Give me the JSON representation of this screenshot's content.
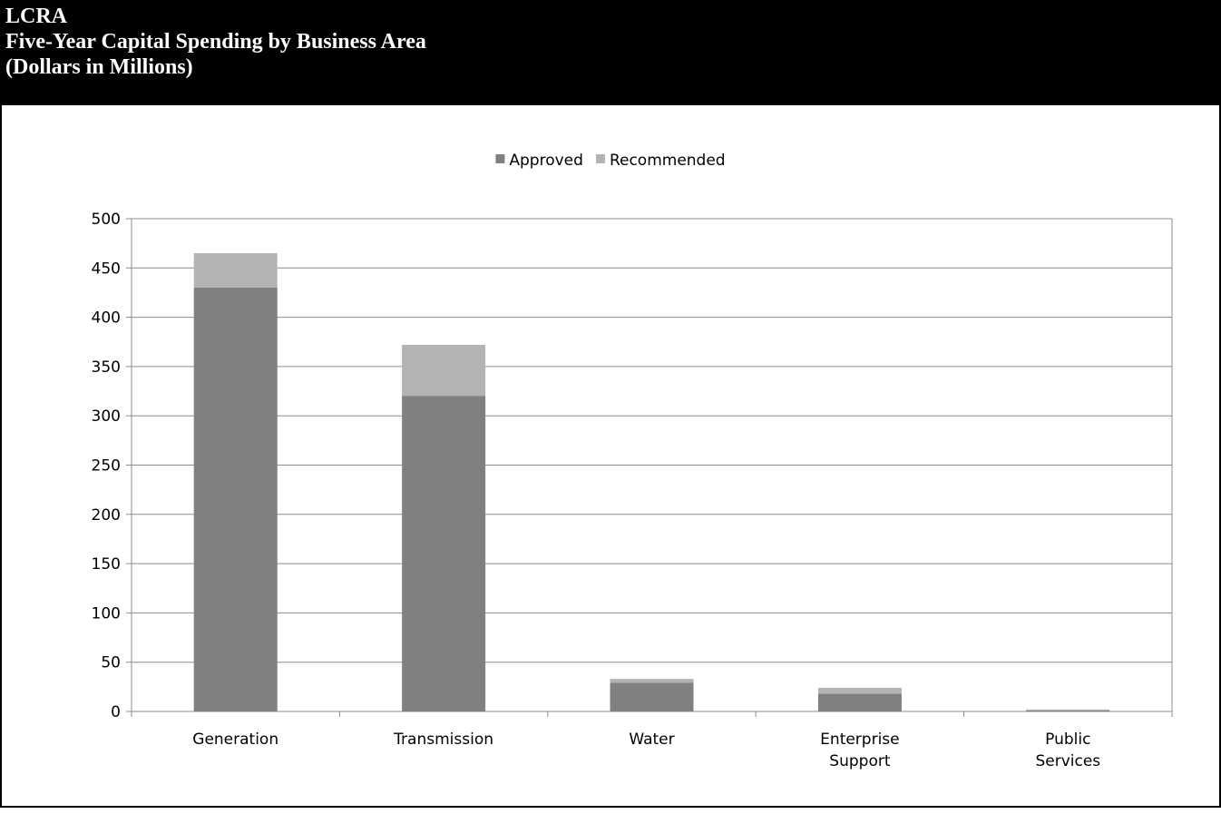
{
  "header": {
    "line1": "LCRA",
    "line2": "Five-Year Capital Spending by Business Area",
    "line3": "(Dollars in Millions)"
  },
  "chart_data": {
    "type": "bar",
    "stacked": true,
    "categories": [
      [
        "Generation"
      ],
      [
        "Transmission"
      ],
      [
        "Water"
      ],
      [
        "Enterprise",
        "Support"
      ],
      [
        "Public",
        "Services"
      ]
    ],
    "series": [
      {
        "name": "Approved",
        "color": "#808080",
        "values": [
          430,
          320,
          29,
          18,
          1
        ]
      },
      {
        "name": "Recommended",
        "color": "#b3b3b3",
        "values": [
          35,
          52,
          4,
          6,
          1
        ]
      }
    ],
    "ylim": [
      0,
      500
    ],
    "yticks": [
      0,
      50,
      100,
      150,
      200,
      250,
      300,
      350,
      400,
      450,
      500
    ],
    "grid": true,
    "legend": "top-center",
    "title": "",
    "xlabel": "",
    "ylabel": ""
  }
}
